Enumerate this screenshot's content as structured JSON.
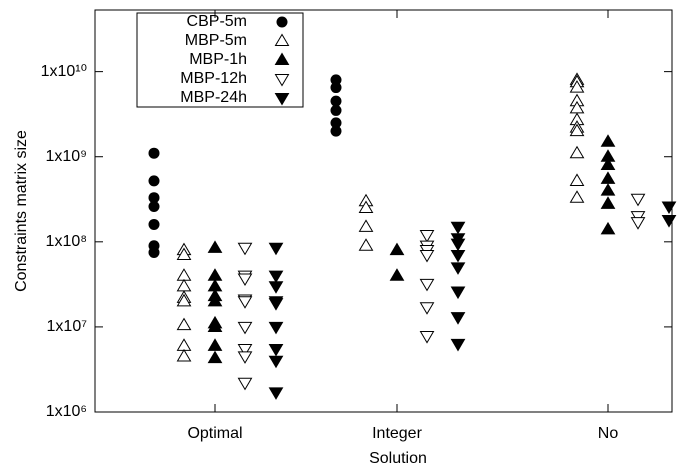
{
  "chart_data": {
    "type": "strip",
    "x_label": "Solution",
    "y_label": "Constraints matrix size",
    "categories": [
      "Optimal",
      "Integer",
      "No"
    ],
    "log_y": true,
    "ylim": [
      1000000,
      53000000000
    ],
    "yticks": [
      {
        "value": 1000000,
        "label": "1x10⁶"
      },
      {
        "value": 10000000,
        "label": "1x10⁷"
      },
      {
        "value": 100000000,
        "label": "1x10⁸"
      },
      {
        "value": 1000000000,
        "label": "1x10⁹"
      },
      {
        "value": 10000000000,
        "label": "1x10¹⁰"
      }
    ],
    "legend": "top-left",
    "series": [
      {
        "name": "CBP-5m",
        "color": "#000000",
        "marker": "circle",
        "filled": true,
        "values": [
          [
            1100000000,
            520000000,
            330000000,
            260000000,
            160000000,
            90000000,
            75000000
          ],
          [
            8000000000,
            6500000000,
            4500000000,
            3500000000,
            2500000000,
            2000000000
          ],
          []
        ]
      },
      {
        "name": "MBP-5m",
        "color": "#000000",
        "marker": "triangle-up",
        "filled": false,
        "values": [
          [
            80000000,
            70000000,
            40000000,
            30000000,
            22000000,
            20000000,
            10500000,
            6000000,
            4500000
          ],
          [
            300000000,
            250000000,
            150000000,
            90000000
          ],
          [
            8000000000,
            7500000000,
            6500000000,
            4500000000,
            3700000000,
            2700000000,
            2200000000,
            2000000000,
            1100000000,
            520000000,
            330000000
          ]
        ]
      },
      {
        "name": "MBP-1h",
        "color": "#000000",
        "marker": "triangle-up",
        "filled": true,
        "values": [
          [
            85000000,
            40000000,
            30000000,
            23000000,
            20000000,
            11000000,
            10000000,
            6000000,
            4300000
          ],
          [
            80000000,
            40000000
          ],
          [
            1500000000,
            1000000000,
            800000000,
            550000000,
            400000000,
            280000000,
            140000000
          ]
        ]
      },
      {
        "name": "MBP-12h",
        "color": "#000000",
        "marker": "triangle-down",
        "filled": false,
        "values": [
          [
            85000000,
            40000000,
            37000000,
            21000000,
            20000000,
            10000000,
            5500000,
            4500000,
            2200000
          ],
          [
            120000000,
            90000000,
            80000000,
            70000000,
            32000000,
            17000000,
            7800000
          ],
          [
            320000000,
            200000000,
            170000000
          ]
        ]
      },
      {
        "name": "MBP-24h",
        "color": "#000000",
        "marker": "triangle-down",
        "filled": true,
        "values": [
          [
            85000000,
            40000000,
            30000000,
            20000000,
            19000000,
            10000000,
            5500000,
            4000000,
            1700000
          ],
          [
            150000000,
            110000000,
            95000000,
            70000000,
            50000000,
            26000000,
            13000000,
            6300000
          ],
          [
            260000000,
            180000000
          ]
        ]
      }
    ]
  }
}
